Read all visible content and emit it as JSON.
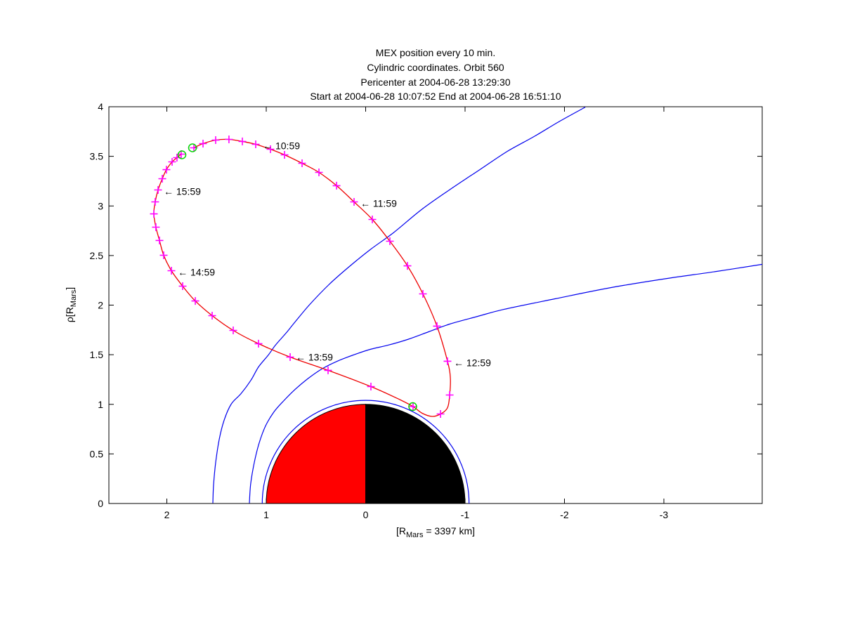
{
  "chart_data": {
    "type": "line",
    "titles": [
      "MEX position every 10 min.",
      "Cylindric coordinates. Orbit 560",
      "Pericenter at 2004-06-28 13:29:30",
      "Start at 2004-06-28 10:07:52 End at 2004-06-28 16:51:10"
    ],
    "xlabel": {
      "pre": "[R",
      "sub": "Mars",
      "post": " = 3397 km]"
    },
    "ylabel": {
      "pre": "ρ[R",
      "sub": "Mars",
      "post": "]"
    },
    "xlim": [
      2.583,
      -3.989
    ],
    "ylim": [
      0,
      4
    ],
    "x_axis_reversed": true,
    "grid": false,
    "x_ticks": [
      {
        "v": 2,
        "label": "2"
      },
      {
        "v": 1,
        "label": "1"
      },
      {
        "v": 0,
        "label": "0"
      },
      {
        "v": -1,
        "label": "-1"
      },
      {
        "v": -2,
        "label": "-2"
      },
      {
        "v": -3,
        "label": "-3"
      }
    ],
    "y_ticks": [
      {
        "v": 0,
        "label": "0"
      },
      {
        "v": 0.5,
        "label": "0.5"
      },
      {
        "v": 1,
        "label": "1"
      },
      {
        "v": 1.5,
        "label": "1.5"
      },
      {
        "v": 2,
        "label": "2"
      },
      {
        "v": 2.5,
        "label": "2.5"
      },
      {
        "v": 3,
        "label": "3"
      },
      {
        "v": 3.5,
        "label": "3.5"
      },
      {
        "v": 4,
        "label": "4"
      }
    ],
    "colors": {
      "orbit": "#ee0000",
      "marker": "#ff00ff",
      "boundary": "#0000ee",
      "event_circle": "#00d500",
      "planet_day": "#ff0000",
      "planet_night": "#000000",
      "axis": "#000000"
    },
    "orbit": {
      "path": [
        [
          1.728,
          3.586
        ],
        [
          1.636,
          3.628
        ],
        [
          1.509,
          3.664
        ],
        [
          1.375,
          3.671
        ],
        [
          1.24,
          3.65
        ],
        [
          1.106,
          3.621
        ],
        [
          0.958,
          3.572
        ],
        [
          0.816,
          3.515
        ],
        [
          0.64,
          3.43
        ],
        [
          0.47,
          3.338
        ],
        [
          0.293,
          3.204
        ],
        [
          0.117,
          3.041
        ],
        [
          -0.067,
          2.864
        ],
        [
          -0.244,
          2.644
        ],
        [
          -0.42,
          2.396
        ],
        [
          -0.576,
          2.113
        ],
        [
          -0.717,
          1.788
        ],
        [
          -0.823,
          1.434
        ],
        [
          -0.852,
          1.264
        ],
        [
          -0.845,
          1.094
        ],
        [
          -0.823,
          0.966
        ],
        [
          -0.753,
          0.903
        ],
        [
          -0.668,
          0.878
        ],
        [
          -0.569,
          0.91
        ],
        [
          -0.477,
          0.977
        ],
        [
          -0.35,
          1.044
        ],
        [
          -0.053,
          1.179
        ],
        [
          0.378,
          1.342
        ],
        [
          0.76,
          1.476
        ],
        [
          1.078,
          1.611
        ],
        [
          1.332,
          1.745
        ],
        [
          1.544,
          1.894
        ],
        [
          1.714,
          2.042
        ],
        [
          1.841,
          2.191
        ],
        [
          1.954,
          2.347
        ],
        [
          2.032,
          2.503
        ],
        [
          2.074,
          2.652
        ],
        [
          2.11,
          2.786
        ],
        [
          2.131,
          2.92
        ],
        [
          2.117,
          3.041
        ],
        [
          2.088,
          3.161
        ],
        [
          2.046,
          3.274
        ],
        [
          2.004,
          3.366
        ],
        [
          1.947,
          3.444
        ],
        [
          1.898,
          3.487
        ],
        [
          1.856,
          3.522
        ]
      ],
      "markers": [
        [
          1.728,
          3.586
        ],
        [
          1.636,
          3.628
        ],
        [
          1.509,
          3.664
        ],
        [
          1.375,
          3.671
        ],
        [
          1.24,
          3.65
        ],
        [
          1.106,
          3.621
        ],
        [
          0.958,
          3.572
        ],
        [
          0.816,
          3.515
        ],
        [
          0.64,
          3.43
        ],
        [
          0.47,
          3.338
        ],
        [
          0.293,
          3.204
        ],
        [
          0.117,
          3.041
        ],
        [
          -0.067,
          2.864
        ],
        [
          -0.244,
          2.644
        ],
        [
          -0.42,
          2.396
        ],
        [
          -0.576,
          2.113
        ],
        [
          -0.717,
          1.788
        ],
        [
          -0.823,
          1.434
        ],
        [
          -0.845,
          1.094
        ],
        [
          -0.753,
          0.903
        ],
        [
          -0.477,
          0.977
        ],
        [
          -0.053,
          1.179
        ],
        [
          0.378,
          1.342
        ],
        [
          0.76,
          1.476
        ],
        [
          1.078,
          1.611
        ],
        [
          1.332,
          1.745
        ],
        [
          1.544,
          1.894
        ],
        [
          1.714,
          2.042
        ],
        [
          1.841,
          2.191
        ],
        [
          1.954,
          2.347
        ],
        [
          2.032,
          2.503
        ],
        [
          2.074,
          2.652
        ],
        [
          2.11,
          2.786
        ],
        [
          2.131,
          2.92
        ],
        [
          2.117,
          3.041
        ],
        [
          2.088,
          3.161
        ],
        [
          2.046,
          3.274
        ],
        [
          2.004,
          3.366
        ],
        [
          1.947,
          3.444
        ],
        [
          1.898,
          3.487
        ],
        [
          1.856,
          3.522
        ]
      ]
    },
    "bow_shock": [
      [
        1.537,
        0.004
      ],
      [
        1.53,
        0.188
      ],
      [
        1.509,
        0.414
      ],
      [
        1.473,
        0.648
      ],
      [
        1.424,
        0.839
      ],
      [
        1.353,
        1.002
      ],
      [
        1.254,
        1.108
      ],
      [
        1.155,
        1.242
      ],
      [
        1.078,
        1.377
      ],
      [
        0.979,
        1.497
      ],
      [
        0.908,
        1.596
      ],
      [
        0.802,
        1.717
      ],
      [
        0.71,
        1.83
      ],
      [
        0.562,
        2.007
      ],
      [
        0.371,
        2.205
      ],
      [
        0.18,
        2.375
      ],
      [
        -0.046,
        2.559
      ],
      [
        -0.279,
        2.729
      ],
      [
        -0.562,
        2.963
      ],
      [
        -0.852,
        3.168
      ],
      [
        -1.148,
        3.366
      ],
      [
        -1.424,
        3.55
      ],
      [
        -1.693,
        3.699
      ],
      [
        -1.954,
        3.855
      ],
      [
        -2.209,
        3.996
      ]
    ],
    "mpb": [
      [
        1.17,
        0.004
      ],
      [
        1.156,
        0.202
      ],
      [
        1.12,
        0.414
      ],
      [
        1.071,
        0.612
      ],
      [
        1.007,
        0.782
      ],
      [
        0.922,
        0.924
      ],
      [
        0.823,
        1.037
      ],
      [
        0.71,
        1.15
      ],
      [
        0.583,
        1.257
      ],
      [
        0.442,
        1.356
      ],
      [
        0.286,
        1.434
      ],
      [
        0.124,
        1.497
      ],
      [
        -0.046,
        1.554
      ],
      [
        -0.223,
        1.596
      ],
      [
        -0.42,
        1.653
      ],
      [
        -0.633,
        1.731
      ],
      [
        -0.845,
        1.809
      ],
      [
        -1.127,
        1.887
      ],
      [
        -1.389,
        1.957
      ],
      [
        -1.905,
        2.064
      ],
      [
        -2.47,
        2.177
      ],
      [
        -3.035,
        2.269
      ],
      [
        -3.53,
        2.34
      ],
      [
        -3.99,
        2.411
      ]
    ],
    "boundary_circle": {
      "radius": 1.04
    },
    "planet": {
      "radius": 1.0,
      "day_side": "+x"
    },
    "event_circles": [
      {
        "name": "start",
        "x": 1.742,
        "rho": 3.586
      },
      {
        "name": "end",
        "x": 1.848,
        "rho": 3.515
      },
      {
        "name": "pericenter",
        "x": -0.473,
        "rho": 0.977
      }
    ],
    "annotations": [
      {
        "label": "← 10:59",
        "x": 1.035,
        "rho": 3.607
      },
      {
        "label": "← 11:59",
        "x": 0.053,
        "rho": 3.027
      },
      {
        "label": "← 12:59",
        "x": -0.887,
        "rho": 1.42
      },
      {
        "label": "← 13:59",
        "x": 0.703,
        "rho": 1.476
      },
      {
        "label": "← 14:59",
        "x": 1.89,
        "rho": 2.333
      },
      {
        "label": "← 15:59",
        "x": 2.032,
        "rho": 3.147
      }
    ]
  }
}
